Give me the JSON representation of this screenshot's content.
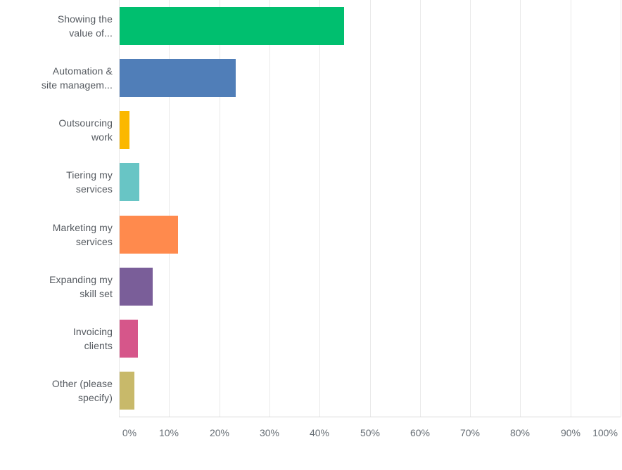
{
  "chart_data": {
    "type": "bar",
    "orientation": "horizontal",
    "title": "",
    "xlabel": "",
    "ylabel": "",
    "xlim": [
      0,
      100
    ],
    "grid": true,
    "legend": false,
    "x_tick_labels": [
      "0%",
      "10%",
      "20%",
      "30%",
      "40%",
      "50%",
      "60%",
      "70%",
      "80%",
      "90%",
      "100%"
    ],
    "categories": [
      "Showing the value of...",
      "Automation & site managem...",
      "Outsourcing work",
      "Tiering my services",
      "Marketing my services",
      "Expanding my skill set",
      "Invoicing clients",
      "Other (please specify)"
    ],
    "category_label_lines": [
      [
        "Showing the",
        "value of..."
      ],
      [
        "Automation &",
        "site managem..."
      ],
      [
        "Outsourcing",
        "work"
      ],
      [
        "Tiering my",
        "services"
      ],
      [
        "Marketing my",
        "services"
      ],
      [
        "Expanding my",
        "skill set"
      ],
      [
        "Invoicing",
        "clients"
      ],
      [
        "Other (please",
        "specify)"
      ]
    ],
    "values": [
      44.7,
      23.1,
      2.0,
      3.9,
      11.7,
      6.6,
      3.6,
      3.0
    ],
    "bar_colors": [
      "#00BF6F",
      "#507EB8",
      "#FBB800",
      "#68C5C5",
      "#FF8A4D",
      "#7A5E99",
      "#D6568A",
      "#C8B96A"
    ]
  },
  "styles": {
    "category_label_color": "#54595F",
    "tick_label_color": "#676E75",
    "gridline_color": "#E9E9E9",
    "baseline_color": "#D9D9D9",
    "background_color": "#FFFFFF"
  }
}
